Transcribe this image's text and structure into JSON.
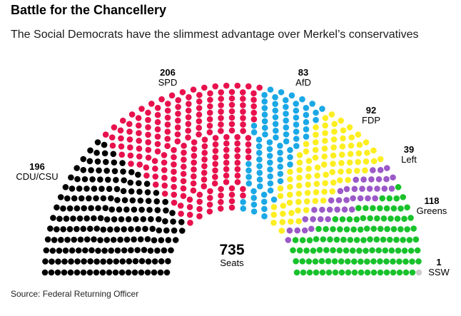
{
  "header": {
    "title": "Battle for the Chancellery",
    "subtitle": "The Social Democrats have the slimmest advantage over Merkel’s conservatives"
  },
  "total": {
    "value": "735",
    "label": "Seats"
  },
  "source": "Source: Federal Returning Officer",
  "chart_data": {
    "type": "parliament",
    "total_seats": 735,
    "series": [
      {
        "name": "CDU/CSU",
        "seats": 196,
        "seats_label": "196",
        "color": "#000000"
      },
      {
        "name": "SPD",
        "seats": 206,
        "seats_label": "206",
        "color": "#e8114d"
      },
      {
        "name": "AfD",
        "seats": 83,
        "seats_label": "83",
        "color": "#1ba8e6"
      },
      {
        "name": "FDP",
        "seats": 92,
        "seats_label": "92",
        "color": "#fdee21"
      },
      {
        "name": "Left",
        "seats": 39,
        "seats_label": "39",
        "color": "#9b59c8"
      },
      {
        "name": "Greens",
        "seats": 118,
        "seats_label": "118",
        "color": "#18c22b"
      },
      {
        "name": "SSW",
        "seats": 1,
        "seats_label": "1",
        "color": "#cccccc"
      }
    ]
  }
}
